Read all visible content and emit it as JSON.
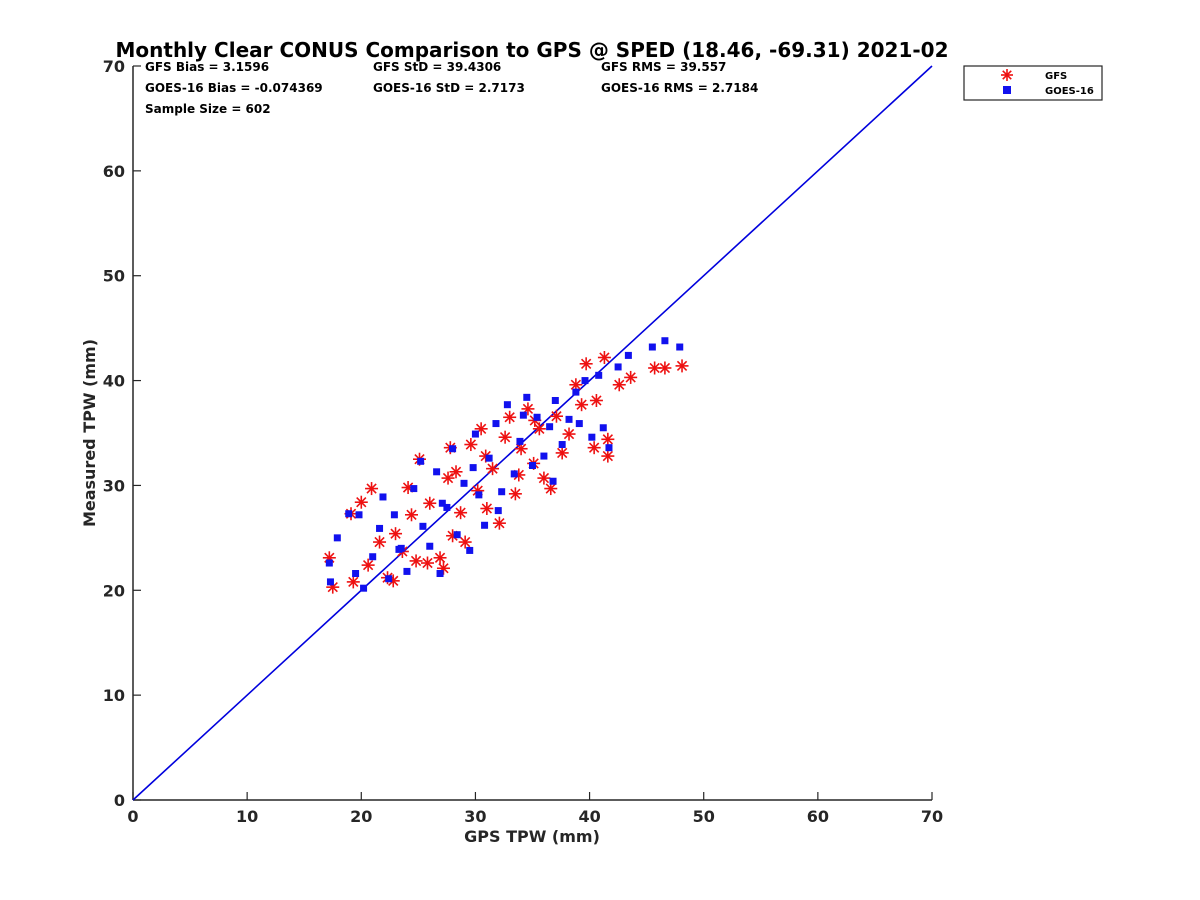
{
  "chart_data": {
    "type": "scatter",
    "title": "Monthly Clear CONUS Comparison to GPS @ SPED (18.46, -69.31) 2021-02",
    "xlabel": "GPS TPW (mm)",
    "ylabel": "Measured TPW (mm)",
    "xlim": [
      0,
      70
    ],
    "ylim": [
      0,
      70
    ],
    "xticks": [
      "0",
      "10",
      "20",
      "30",
      "40",
      "50",
      "60",
      "70"
    ],
    "yticks": [
      "0",
      "10",
      "20",
      "30",
      "40",
      "50",
      "60",
      "70"
    ],
    "grid": false,
    "legend_position": "top-right",
    "stats": [
      "GFS Bias = 3.1596",
      "GFS StD = 39.4306",
      "GFS RMS = 39.557",
      "GOES-16 Bias = -0.074369",
      "GOES-16 StD = 2.7173",
      "GOES-16 RMS = 2.7184",
      "Sample Size = 602"
    ],
    "reference_line": {
      "x": [
        0,
        70
      ],
      "y": [
        0,
        70
      ],
      "color": "#0000dd"
    },
    "series": [
      {
        "name": "GFS",
        "marker": "asterisk",
        "color": "#ee1111",
        "points": [
          [
            17.2,
            23.1
          ],
          [
            17.5,
            20.3
          ],
          [
            19.1,
            27.3
          ],
          [
            20.0,
            28.4
          ],
          [
            20.9,
            29.7
          ],
          [
            19.3,
            20.8
          ],
          [
            20.6,
            22.4
          ],
          [
            21.6,
            24.6
          ],
          [
            22.3,
            21.2
          ],
          [
            22.8,
            20.9
          ],
          [
            23.6,
            23.7
          ],
          [
            24.1,
            29.8
          ],
          [
            25.1,
            32.5
          ],
          [
            24.4,
            27.2
          ],
          [
            25.8,
            22.6
          ],
          [
            26.9,
            23.1
          ],
          [
            27.2,
            22.1
          ],
          [
            27.8,
            33.6
          ],
          [
            28.3,
            31.3
          ],
          [
            28.7,
            27.4
          ],
          [
            29.1,
            24.6
          ],
          [
            29.6,
            33.9
          ],
          [
            30.2,
            29.5
          ],
          [
            30.5,
            35.4
          ],
          [
            31.0,
            27.8
          ],
          [
            31.5,
            31.6
          ],
          [
            32.1,
            26.4
          ],
          [
            32.6,
            34.6
          ],
          [
            33.0,
            36.5
          ],
          [
            33.5,
            29.2
          ],
          [
            34.0,
            33.5
          ],
          [
            34.6,
            37.3
          ],
          [
            35.1,
            32.1
          ],
          [
            35.6,
            35.4
          ],
          [
            36.0,
            30.7
          ],
          [
            36.6,
            29.7
          ],
          [
            37.1,
            36.6
          ],
          [
            37.6,
            33.1
          ],
          [
            38.2,
            34.9
          ],
          [
            38.8,
            39.6
          ],
          [
            39.3,
            37.7
          ],
          [
            39.7,
            41.6
          ],
          [
            40.4,
            33.6
          ],
          [
            40.6,
            38.1
          ],
          [
            41.3,
            42.2
          ],
          [
            41.6,
            32.8
          ],
          [
            41.6,
            34.4
          ],
          [
            42.6,
            39.6
          ],
          [
            43.6,
            40.3
          ],
          [
            45.7,
            41.2
          ],
          [
            46.6,
            41.2
          ],
          [
            48.1,
            41.4
          ],
          [
            23.0,
            25.4
          ],
          [
            26.0,
            28.3
          ],
          [
            28.0,
            25.2
          ],
          [
            30.9,
            32.8
          ],
          [
            33.8,
            31.0
          ],
          [
            35.2,
            36.2
          ],
          [
            24.8,
            22.8
          ],
          [
            27.6,
            30.7
          ]
        ]
      },
      {
        "name": "GOES-16",
        "marker": "square",
        "color": "#1111ee",
        "points": [
          [
            17.2,
            22.6
          ],
          [
            17.3,
            20.8
          ],
          [
            17.9,
            25.0
          ],
          [
            18.9,
            27.3
          ],
          [
            19.8,
            27.2
          ],
          [
            19.5,
            21.6
          ],
          [
            20.2,
            20.2
          ],
          [
            21.0,
            23.2
          ],
          [
            21.6,
            25.9
          ],
          [
            21.9,
            28.9
          ],
          [
            22.4,
            21.1
          ],
          [
            22.9,
            27.2
          ],
          [
            23.5,
            24.0
          ],
          [
            24.0,
            21.8
          ],
          [
            24.6,
            29.7
          ],
          [
            25.2,
            32.3
          ],
          [
            25.4,
            26.1
          ],
          [
            26.0,
            24.2
          ],
          [
            26.6,
            31.3
          ],
          [
            26.9,
            21.6
          ],
          [
            27.5,
            27.9
          ],
          [
            28.0,
            33.5
          ],
          [
            28.4,
            25.3
          ],
          [
            29.0,
            30.2
          ],
          [
            29.5,
            23.8
          ],
          [
            30.0,
            34.9
          ],
          [
            30.3,
            29.1
          ],
          [
            30.8,
            26.2
          ],
          [
            31.2,
            32.6
          ],
          [
            31.8,
            35.9
          ],
          [
            32.3,
            29.4
          ],
          [
            32.8,
            37.7
          ],
          [
            33.4,
            31.1
          ],
          [
            33.9,
            34.2
          ],
          [
            34.5,
            38.4
          ],
          [
            35.0,
            31.9
          ],
          [
            35.4,
            36.5
          ],
          [
            36.0,
            32.8
          ],
          [
            36.5,
            35.6
          ],
          [
            37.0,
            38.1
          ],
          [
            37.6,
            33.9
          ],
          [
            38.2,
            36.3
          ],
          [
            38.8,
            38.9
          ],
          [
            39.1,
            35.9
          ],
          [
            39.6,
            40.0
          ],
          [
            40.2,
            34.6
          ],
          [
            40.8,
            40.5
          ],
          [
            41.2,
            35.5
          ],
          [
            41.7,
            33.6
          ],
          [
            42.5,
            41.3
          ],
          [
            43.4,
            42.4
          ],
          [
            45.5,
            43.2
          ],
          [
            46.6,
            43.8
          ],
          [
            47.9,
            43.2
          ],
          [
            23.3,
            23.9
          ],
          [
            27.1,
            28.3
          ],
          [
            29.8,
            31.7
          ],
          [
            32.0,
            27.6
          ],
          [
            34.2,
            36.7
          ],
          [
            36.8,
            30.4
          ]
        ]
      }
    ]
  }
}
